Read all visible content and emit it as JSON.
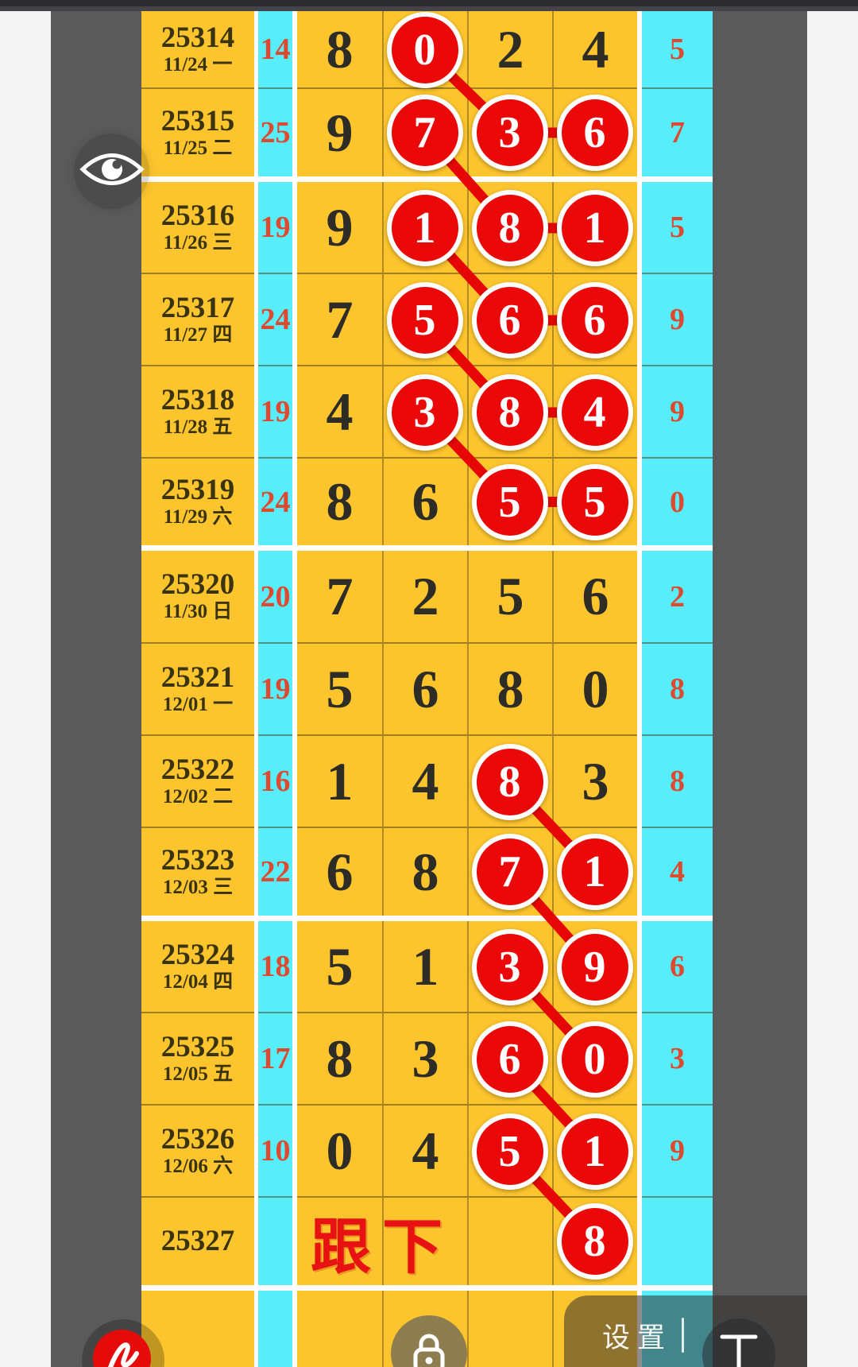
{
  "colors": {
    "yellow_cell": "#fdc52d",
    "cyan_cell": "#58edfb",
    "circle_red": "#ea0808",
    "count_red": "#dd4a30",
    "note_red": "#e81212",
    "gutter_gray": "#5a5a5a",
    "edge_white": "#f4f4f4",
    "topbar_dark": "#2c2b30"
  },
  "table": {
    "rows": [
      {
        "draw": "25314",
        "date": "11/24 一",
        "count": "14",
        "digits": [
          {
            "v": "8",
            "c": false
          },
          {
            "v": "0",
            "c": true
          },
          {
            "v": "2",
            "c": false
          },
          {
            "v": "4",
            "c": false
          }
        ],
        "sum": "5",
        "group_end": false,
        "note": ""
      },
      {
        "draw": "25315",
        "date": "11/25 二",
        "count": "25",
        "digits": [
          {
            "v": "9",
            "c": false
          },
          {
            "v": "7",
            "c": true
          },
          {
            "v": "3",
            "c": true
          },
          {
            "v": "6",
            "c": true
          }
        ],
        "sum": "7",
        "group_end": true,
        "note": ""
      },
      {
        "draw": "25316",
        "date": "11/26 三",
        "count": "19",
        "digits": [
          {
            "v": "9",
            "c": false
          },
          {
            "v": "1",
            "c": true
          },
          {
            "v": "8",
            "c": true
          },
          {
            "v": "1",
            "c": true
          }
        ],
        "sum": "5",
        "group_end": false,
        "note": ""
      },
      {
        "draw": "25317",
        "date": "11/27 四",
        "count": "24",
        "digits": [
          {
            "v": "7",
            "c": false
          },
          {
            "v": "5",
            "c": true
          },
          {
            "v": "6",
            "c": true
          },
          {
            "v": "6",
            "c": true
          }
        ],
        "sum": "9",
        "group_end": false,
        "note": ""
      },
      {
        "draw": "25318",
        "date": "11/28 五",
        "count": "19",
        "digits": [
          {
            "v": "4",
            "c": false
          },
          {
            "v": "3",
            "c": true
          },
          {
            "v": "8",
            "c": true
          },
          {
            "v": "4",
            "c": true
          }
        ],
        "sum": "9",
        "group_end": false,
        "note": ""
      },
      {
        "draw": "25319",
        "date": "11/29 六",
        "count": "24",
        "digits": [
          {
            "v": "8",
            "c": false
          },
          {
            "v": "6",
            "c": false
          },
          {
            "v": "5",
            "c": true
          },
          {
            "v": "5",
            "c": true
          }
        ],
        "sum": "0",
        "group_end": true,
        "note": ""
      },
      {
        "draw": "25320",
        "date": "11/30 日",
        "count": "20",
        "digits": [
          {
            "v": "7",
            "c": false
          },
          {
            "v": "2",
            "c": false
          },
          {
            "v": "5",
            "c": false
          },
          {
            "v": "6",
            "c": false
          }
        ],
        "sum": "2",
        "group_end": false,
        "note": ""
      },
      {
        "draw": "25321",
        "date": "12/01 一",
        "count": "19",
        "digits": [
          {
            "v": "5",
            "c": false
          },
          {
            "v": "6",
            "c": false
          },
          {
            "v": "8",
            "c": false
          },
          {
            "v": "0",
            "c": false
          }
        ],
        "sum": "8",
        "group_end": false,
        "note": ""
      },
      {
        "draw": "25322",
        "date": "12/02 二",
        "count": "16",
        "digits": [
          {
            "v": "1",
            "c": false
          },
          {
            "v": "4",
            "c": false
          },
          {
            "v": "8",
            "c": true
          },
          {
            "v": "3",
            "c": false
          }
        ],
        "sum": "8",
        "group_end": false,
        "note": ""
      },
      {
        "draw": "25323",
        "date": "12/03 三",
        "count": "22",
        "digits": [
          {
            "v": "6",
            "c": false
          },
          {
            "v": "8",
            "c": false
          },
          {
            "v": "7",
            "c": true
          },
          {
            "v": "1",
            "c": true
          }
        ],
        "sum": "4",
        "group_end": true,
        "note": ""
      },
      {
        "draw": "25324",
        "date": "12/04 四",
        "count": "18",
        "digits": [
          {
            "v": "5",
            "c": false
          },
          {
            "v": "1",
            "c": false
          },
          {
            "v": "3",
            "c": true
          },
          {
            "v": "9",
            "c": true
          }
        ],
        "sum": "6",
        "group_end": false,
        "note": ""
      },
      {
        "draw": "25325",
        "date": "12/05 五",
        "count": "17",
        "digits": [
          {
            "v": "8",
            "c": false
          },
          {
            "v": "3",
            "c": false
          },
          {
            "v": "6",
            "c": true
          },
          {
            "v": "0",
            "c": true
          }
        ],
        "sum": "3",
        "group_end": false,
        "note": ""
      },
      {
        "draw": "25326",
        "date": "12/06 六",
        "count": "10",
        "digits": [
          {
            "v": "0",
            "c": false
          },
          {
            "v": "4",
            "c": false
          },
          {
            "v": "5",
            "c": true
          },
          {
            "v": "1",
            "c": true
          }
        ],
        "sum": "9",
        "group_end": false,
        "note": ""
      },
      {
        "draw": "25327",
        "date": "",
        "count": "",
        "digits": [
          {
            "v": "",
            "c": false
          },
          {
            "v": "",
            "c": false
          },
          {
            "v": "",
            "c": false
          },
          {
            "v": "8",
            "c": true
          }
        ],
        "sum": "",
        "group_end": true,
        "note": "跟下"
      },
      {
        "draw": "",
        "date": "",
        "count": "",
        "digits": [
          {
            "v": "",
            "c": false
          },
          {
            "v": "",
            "c": false
          },
          {
            "v": "",
            "c": false
          },
          {
            "v": "",
            "c": false
          }
        ],
        "sum": "",
        "group_end": false,
        "note": ""
      }
    ],
    "links": [
      {
        "from": {
          "row": 0,
          "col": 1
        },
        "to": {
          "row": 1,
          "col": 2
        }
      },
      {
        "from": {
          "row": 1,
          "col": 2
        },
        "to": {
          "row": 1,
          "col": 3
        }
      },
      {
        "from": {
          "row": 1,
          "col": 1
        },
        "to": {
          "row": 2,
          "col": 2
        }
      },
      {
        "from": {
          "row": 2,
          "col": 2
        },
        "to": {
          "row": 2,
          "col": 3
        }
      },
      {
        "from": {
          "row": 2,
          "col": 1
        },
        "to": {
          "row": 3,
          "col": 2
        }
      },
      {
        "from": {
          "row": 3,
          "col": 2
        },
        "to": {
          "row": 3,
          "col": 3
        }
      },
      {
        "from": {
          "row": 3,
          "col": 1
        },
        "to": {
          "row": 4,
          "col": 2
        }
      },
      {
        "from": {
          "row": 4,
          "col": 2
        },
        "to": {
          "row": 4,
          "col": 3
        }
      },
      {
        "from": {
          "row": 4,
          "col": 1
        },
        "to": {
          "row": 5,
          "col": 2
        }
      },
      {
        "from": {
          "row": 5,
          "col": 2
        },
        "to": {
          "row": 5,
          "col": 3
        }
      },
      {
        "from": {
          "row": 8,
          "col": 2
        },
        "to": {
          "row": 9,
          "col": 3
        }
      },
      {
        "from": {
          "row": 9,
          "col": 2
        },
        "to": {
          "row": 10,
          "col": 3
        }
      },
      {
        "from": {
          "row": 10,
          "col": 2
        },
        "to": {
          "row": 11,
          "col": 3
        }
      },
      {
        "from": {
          "row": 11,
          "col": 2
        },
        "to": {
          "row": 12,
          "col": 3
        }
      },
      {
        "from": {
          "row": 12,
          "col": 2
        },
        "to": {
          "row": 13,
          "col": 3
        }
      }
    ]
  },
  "bottom": {
    "settings_label": "设置",
    "divider": "|",
    "text_tool_label": "T"
  },
  "icons": {
    "eye": "eye-icon",
    "pen": "pen-icon",
    "lock": "lock-icon"
  }
}
